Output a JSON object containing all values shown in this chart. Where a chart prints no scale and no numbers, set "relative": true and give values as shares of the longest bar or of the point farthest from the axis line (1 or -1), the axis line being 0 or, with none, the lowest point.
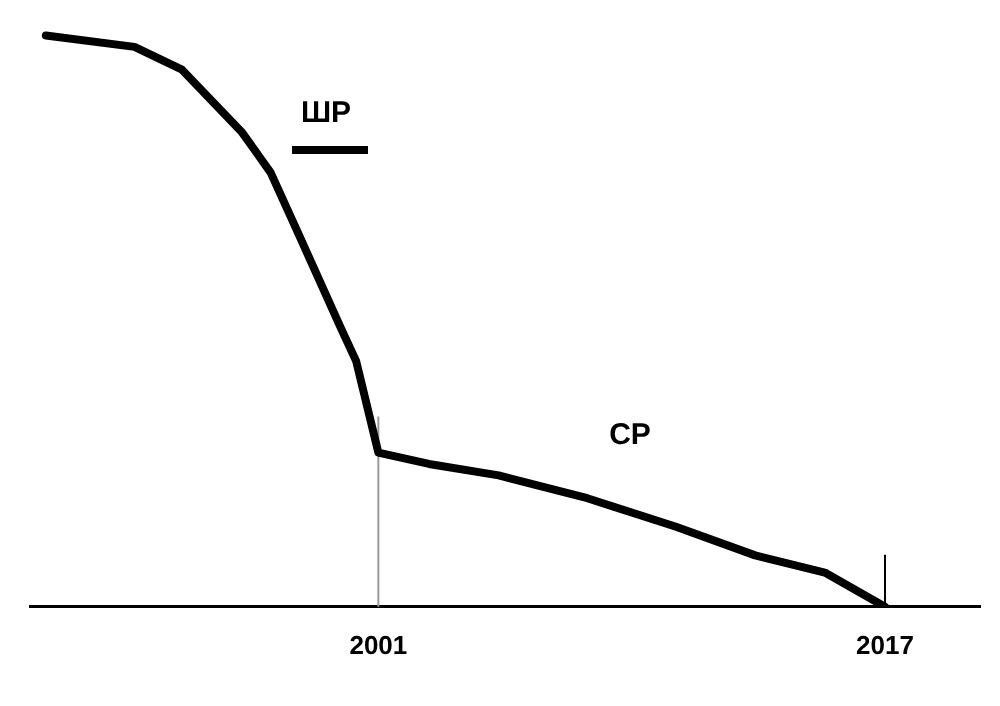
{
  "chart_data": {
    "type": "line",
    "relative": true,
    "x": [
      1990.5,
      1993.3,
      1994.8,
      1996.7,
      1997.6,
      1998.5,
      1999.8,
      2000.3,
      2001,
      2002.6,
      2004.8,
      2007.6,
      2010.4,
      2012.9,
      2015.1,
      2017
    ],
    "series": [
      {
        "color": "#000000",
        "values": [
          1.0,
          0.98,
          0.94,
          0.83,
          0.76,
          0.65,
          0.49,
          0.43,
          0.27,
          0.25,
          0.23,
          0.19,
          0.14,
          0.09,
          0.06,
          0
        ]
      }
    ],
    "xlim": [
      1990,
      2020
    ],
    "xticks": [
      2001,
      2017
    ],
    "ref_lines": [
      {
        "axis": "x",
        "value": 2001,
        "color": "#999999"
      },
      {
        "axis": "x",
        "value": 2017,
        "color": "#000000"
      }
    ],
    "annotations": [
      "ШР",
      "СР"
    ],
    "grid": false,
    "legend": false,
    "marker": "none",
    "line_style": "solid"
  }
}
